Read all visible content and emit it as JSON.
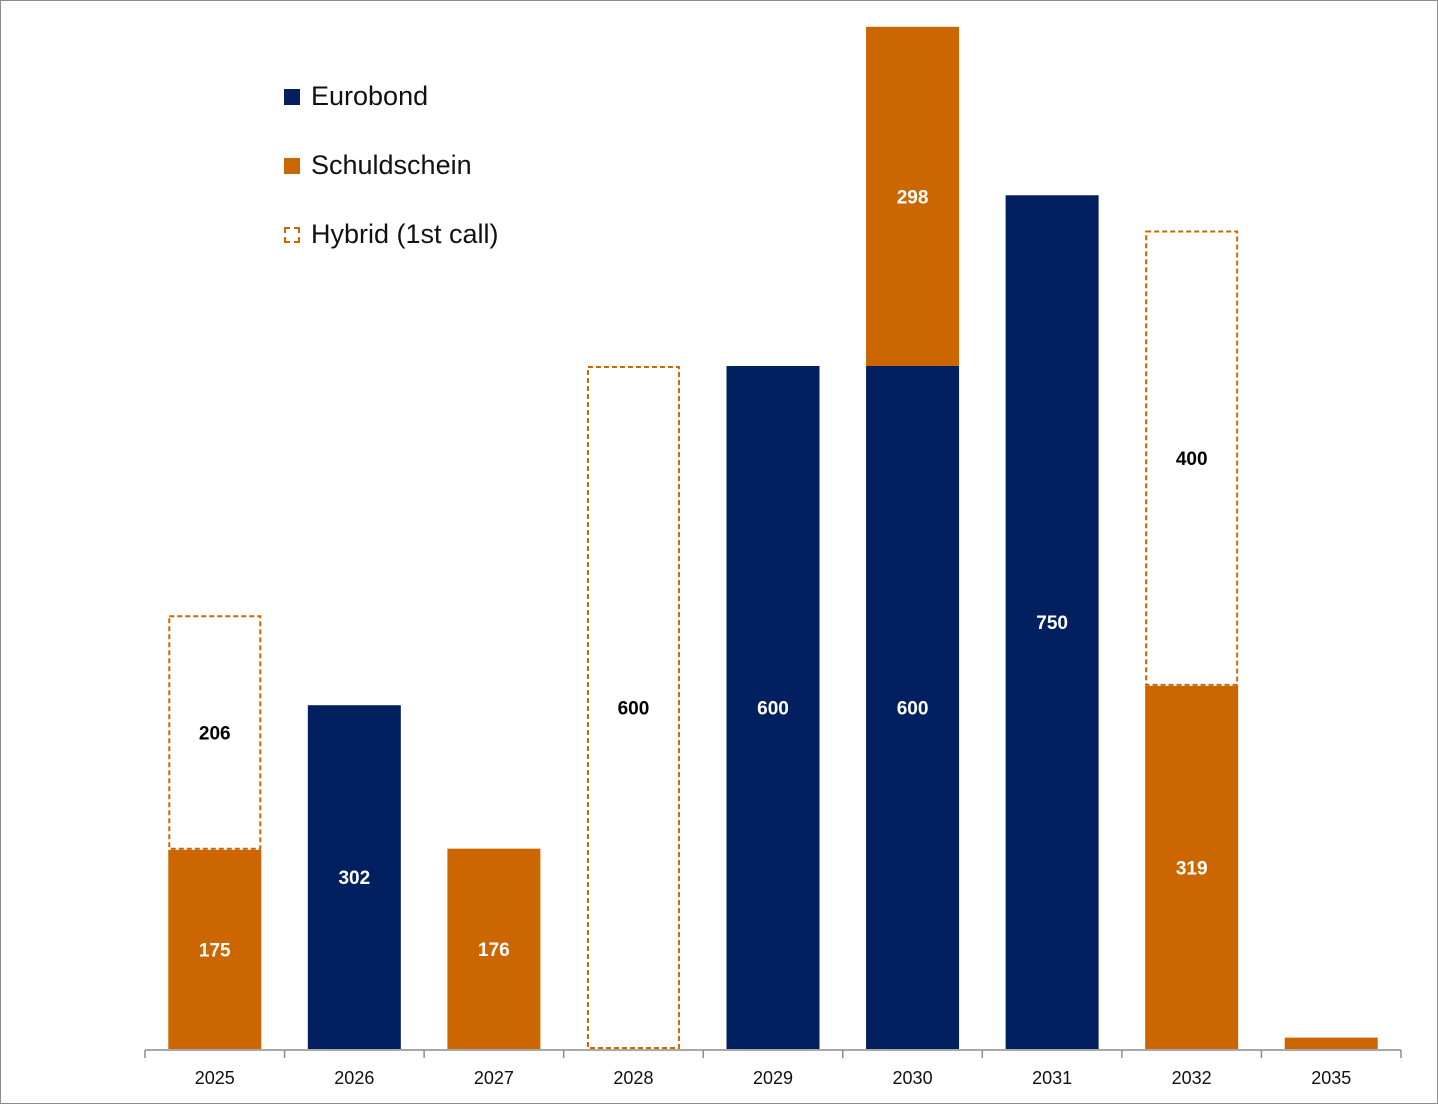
{
  "chart_data": {
    "type": "bar",
    "stacked": true,
    "title": "",
    "xlabel": "",
    "ylabel": "",
    "ylim": [
      0,
      900
    ],
    "grid": false,
    "legend_position": "top-left",
    "categories": [
      "2025",
      "2026",
      "2027",
      "2028",
      "2029",
      "2030",
      "2031",
      "2032",
      "2035"
    ],
    "series": [
      {
        "name": "Eurobond",
        "color": "#022060",
        "style": "solid",
        "label_color": "#ffffff",
        "values": [
          0,
          302,
          0,
          0,
          600,
          600,
          750,
          0,
          0
        ],
        "labels": [
          "",
          "302",
          "",
          "",
          "600",
          "600",
          "750",
          "",
          ""
        ]
      },
      {
        "name": "Schuldschein",
        "color": "#cc6600",
        "style": "solid",
        "label_color": "#ffffff",
        "values": [
          175,
          0,
          176,
          0,
          0,
          298,
          0,
          319,
          10
        ],
        "labels": [
          "175",
          "",
          "176",
          "",
          "",
          "298",
          "",
          "319",
          ""
        ]
      },
      {
        "name": "Hybrid (1st call)",
        "color": "#cc6600",
        "style": "dashed",
        "label_color": "#000000",
        "values": [
          206,
          0,
          0,
          600,
          0,
          0,
          0,
          400,
          0
        ],
        "labels": [
          "206",
          "",
          "",
          "600",
          "",
          "",
          "",
          "400",
          ""
        ]
      }
    ]
  }
}
